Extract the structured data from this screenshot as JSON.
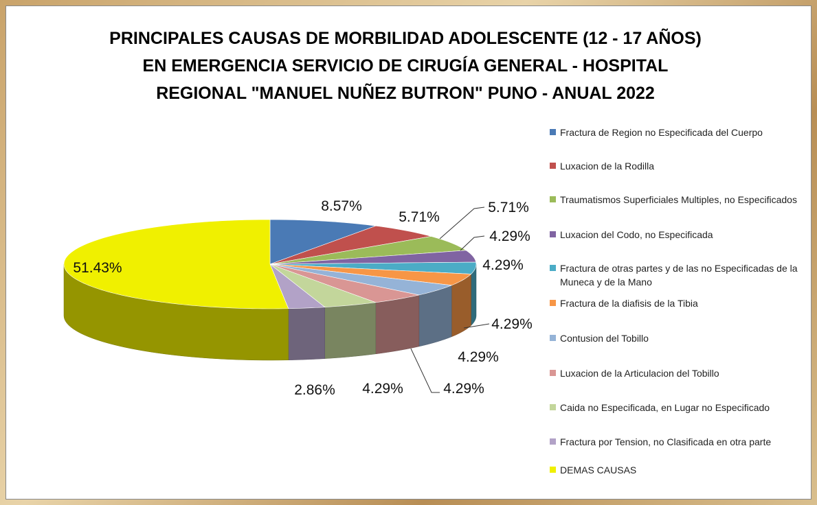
{
  "chart_data": {
    "type": "pie3d",
    "title": [
      "PRINCIPALES CAUSAS DE MORBILIDAD ADOLESCENTE (12 - 17 AÑOS)",
      "EN EMERGENCIA SERVICIO DE CIRUGÍA GENERAL - HOSPITAL",
      "REGIONAL \"MANUEL NUÑEZ BUTRON\" PUNO - ANUAL 2022"
    ],
    "categories": [
      "Fractura de Region no Especificada del Cuerpo",
      "Luxacion de la Rodilla",
      "Traumatismos Superficiales Multiples, no Especificados",
      "Luxacion del Codo, no Especificada",
      "Fractura de otras partes y de las no Especificadas de la Muneca y de la Mano",
      "Fractura de la diafisis de la Tibia",
      "Contusion del Tobillo",
      "Luxacion de la Articulacion del Tobillo",
      "Caida no Especificada, en Lugar no Especificado",
      "Fractura por Tension, no Clasificada en otra parte",
      "DEMAS CAUSAS"
    ],
    "values": [
      8.57,
      5.71,
      5.71,
      4.29,
      4.29,
      4.29,
      4.29,
      4.29,
      4.29,
      2.86,
      51.43
    ],
    "value_labels": [
      "8.57%",
      "5.71%",
      "5.71%",
      "4.29%",
      "4.29%",
      "4.29%",
      "4.29%",
      "4.29%",
      "4.29%",
      "2.86%",
      "51.43%"
    ],
    "colors": [
      "#4a7ab5",
      "#c0504d",
      "#9bbb59",
      "#8064a2",
      "#4bacc6",
      "#f79646",
      "#95b3d7",
      "#d99694",
      "#c3d69b",
      "#b2a2c7",
      "#f0f000"
    ],
    "legend": "right"
  }
}
